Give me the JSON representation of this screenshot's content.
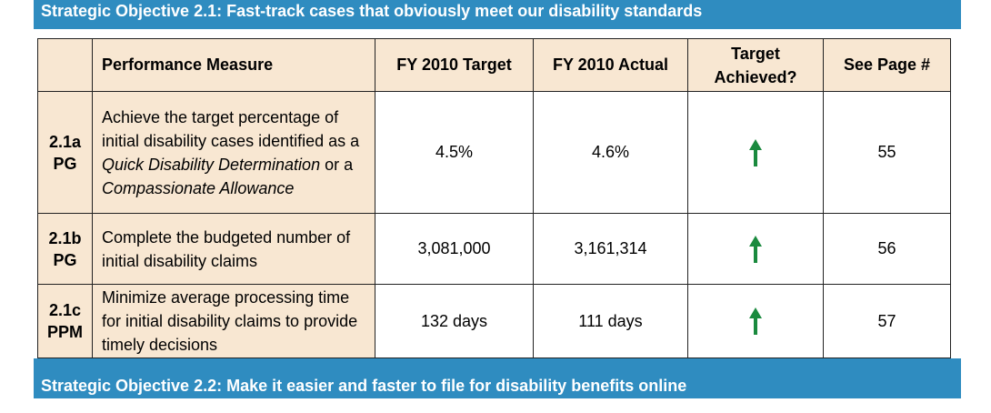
{
  "objectives": {
    "top": "Strategic Objective 2.1:  Fast-track cases that obviously meet our disability standards",
    "bottom": "Strategic Objective 2.2:  Make it easier and faster to file for disability benefits online"
  },
  "table": {
    "headers": {
      "id": "",
      "measure": "Performance Measure",
      "target": "FY 2010 Target",
      "actual": "FY 2010 Actual",
      "achieved_line1": "Target",
      "achieved_line2": "Achieved?",
      "page": "See Page #"
    },
    "rows": [
      {
        "id_line1": "2.1a",
        "id_line2": "PG",
        "measure_part1": "Achieve the target percentage of initial disability cases identified as a ",
        "measure_italic1": "Quick Disability Determination",
        "measure_part2": " or a ",
        "measure_italic2": "Compassionate Allowance",
        "target": "4.5%",
        "actual": "4.6%",
        "achieved_icon": "green-up-arrow-icon",
        "page": "55"
      },
      {
        "id_line1": "2.1b",
        "id_line2": "PG",
        "measure": "Complete the budgeted number of initial disability claims",
        "target": "3,081,000",
        "actual": "3,161,314",
        "achieved_icon": "green-up-arrow-icon",
        "page": "56"
      },
      {
        "id_line1": "2.1c",
        "id_line2": "PPM",
        "measure": "Minimize average processing time for initial disability claims to provide timely decisions",
        "target": "132 days",
        "actual": "111 days",
        "achieved_icon": "green-up-arrow-icon",
        "page": "57"
      }
    ]
  },
  "colors": {
    "banner": "#2f8cc0",
    "cell_tan": "#f8e7d2",
    "arrow_green": "#1a8a3e"
  }
}
